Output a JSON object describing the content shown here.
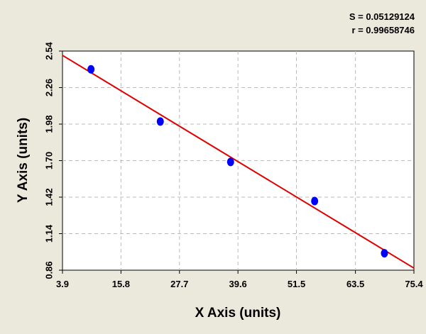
{
  "chart_data": {
    "type": "scatter",
    "x_label": "X Axis (units)",
    "y_label": "Y Axis (units)",
    "annotations": [
      "S = 0.05129124",
      "r = 0.99658746"
    ],
    "series": [
      {
        "x": [
          9.7,
          23.8,
          38.1,
          55.2,
          69.4
        ],
        "values": [
          2.4,
          2.0,
          1.69,
          1.39,
          0.99
        ],
        "color": "#0000ff"
      }
    ],
    "fit": {
      "x": [
        3.9,
        75.4
      ],
      "y": [
        2.507,
        0.876
      ],
      "color": "#e00000"
    },
    "xlim": [
      3.9,
      75.4
    ],
    "xticks": [
      3.9,
      15.8,
      27.7,
      39.6,
      51.5,
      63.5,
      75.4
    ],
    "ylim": [
      0.86,
      2.54
    ],
    "yticks": [
      0.86,
      1.14,
      1.42,
      {
        "value": 1.7,
        "label": "1.70"
      },
      1.98,
      2.26,
      2.54
    ],
    "grid": true
  }
}
